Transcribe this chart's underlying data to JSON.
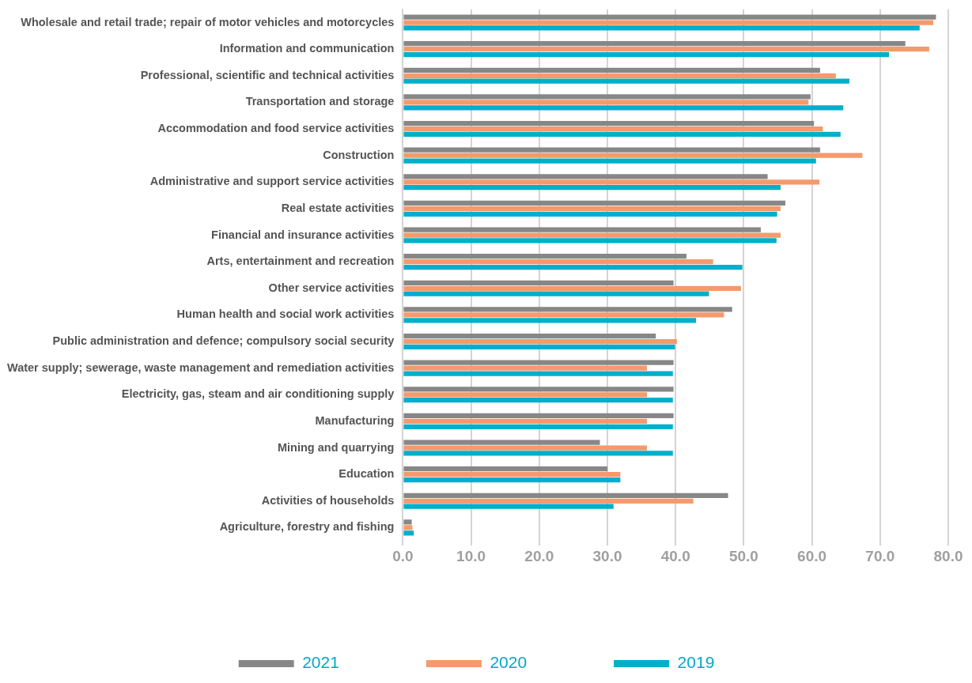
{
  "chart_data": {
    "type": "bar",
    "orientation": "horizontal",
    "categories": [
      "Wholesale and retail trade; repair of motor vehicles and motorcycles",
      "Information and communication",
      "Professional, scientific and technical activities",
      "Transportation and storage",
      "Accommodation and food service activities",
      "Construction",
      "Administrative and support service activities",
      "Real estate activities",
      "Financial and insurance activities",
      "Arts, entertainment and recreation",
      "Other service activities",
      "Human health and social work activities",
      "Public administration and defence; compulsory social security",
      "Water supply; sewerage, waste management and remediation activities",
      "Electricity, gas, steam and air conditioning supply",
      "Manufacturing",
      "Mining and quarrying",
      "Education",
      "Activities of households",
      "Agriculture, forestry and fishing"
    ],
    "series": [
      {
        "name": "2021",
        "color": "#878787",
        "values": [
          78.2,
          73.7,
          61.2,
          59.8,
          60.3,
          61.2,
          53.5,
          56.1,
          52.5,
          41.6,
          39.7,
          48.3,
          37.1,
          39.7,
          39.7,
          39.7,
          28.9,
          30.0,
          47.7,
          1.3
        ]
      },
      {
        "name": "2020",
        "color": "#f49a6c",
        "values": [
          77.8,
          77.2,
          63.5,
          59.5,
          61.6,
          67.4,
          61.1,
          55.4,
          55.4,
          45.5,
          49.6,
          47.1,
          40.2,
          35.8,
          35.8,
          35.8,
          35.8,
          31.9,
          42.6,
          1.4
        ]
      },
      {
        "name": "2019",
        "color": "#00afcb",
        "values": [
          75.8,
          71.3,
          65.5,
          64.6,
          64.2,
          60.6,
          55.4,
          54.9,
          54.8,
          49.8,
          44.9,
          43.0,
          39.9,
          39.6,
          39.6,
          39.6,
          39.6,
          31.9,
          30.9,
          1.6
        ]
      }
    ],
    "xlim": [
      0,
      80
    ],
    "xticks": [
      {
        "value": 0,
        "label": "0.0"
      },
      {
        "value": 10,
        "label": "10.0"
      },
      {
        "value": 20,
        "label": "20.0"
      },
      {
        "value": 30,
        "label": "30.0"
      },
      {
        "value": 40,
        "label": "40.0"
      },
      {
        "value": 50,
        "label": "50.0"
      },
      {
        "value": 60,
        "label": "60.0"
      },
      {
        "value": 70,
        "label": "70.0"
      },
      {
        "value": 80,
        "label": "80.0"
      }
    ],
    "grid": "x",
    "legend": "bottom"
  }
}
